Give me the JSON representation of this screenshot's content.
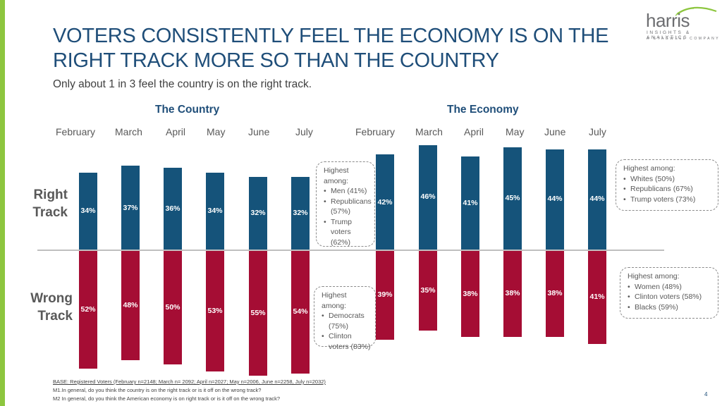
{
  "title": "VOTERS CONSISTENTLY FEEL THE ECONOMY IS ON THE RIGHT TRACK MORE SO THAN THE COUNTRY",
  "subtitle": "Only about 1 in 3 feel the country is on the right track.",
  "logo": {
    "word": "harris",
    "line1": "INSIGHTS & ANALYTICS",
    "line2": "A STAGWELL COMPANY"
  },
  "colors": {
    "right_track": "#15537a",
    "wrong_track": "#a50d34",
    "title": "#1f4e79",
    "accent": "#8dc63f"
  },
  "row_labels": {
    "right": [
      "Right",
      "Track"
    ],
    "wrong": [
      "Wrong",
      "Track"
    ]
  },
  "chart_data": [
    {
      "type": "bar",
      "title": "The Country",
      "categories": [
        "February",
        "March",
        "April",
        "May",
        "June",
        "July"
      ],
      "series": [
        {
          "name": "Right Track",
          "values": [
            34,
            37,
            36,
            34,
            32,
            32
          ],
          "labels": [
            "34%",
            "37%",
            "36%",
            "34%",
            "32%",
            "32%"
          ]
        },
        {
          "name": "Wrong Track",
          "values": [
            52,
            48,
            50,
            53,
            55,
            54
          ],
          "labels": [
            "52%",
            "48%",
            "50%",
            "53%",
            "55%",
            "54%"
          ]
        }
      ]
    },
    {
      "type": "bar",
      "title": "The Economy",
      "categories": [
        "February",
        "March",
        "April",
        "May",
        "June",
        "July"
      ],
      "series": [
        {
          "name": "Right Track",
          "values": [
            42,
            46,
            41,
            45,
            44,
            44
          ],
          "labels": [
            "42%",
            "46%",
            "41%",
            "45%",
            "44%",
            "44%"
          ]
        },
        {
          "name": "Wrong Track",
          "values": [
            39,
            35,
            38,
            38,
            38,
            41
          ],
          "labels": [
            "39%",
            "35%",
            "38%",
            "38%",
            "38%",
            "41%"
          ]
        }
      ]
    }
  ],
  "callouts": {
    "country_right": {
      "heading_lines": [
        "Highest",
        "among:"
      ],
      "items": [
        [
          "Men (41%)"
        ],
        [
          "Republicans",
          "(57%)"
        ],
        [
          "Trump",
          "voters",
          "(62%)"
        ]
      ]
    },
    "country_wrong": {
      "heading_lines": [
        "Highest among:"
      ],
      "items": [
        [
          "Democrats",
          "(75%)"
        ],
        [
          "Clinton",
          "voters (83%)"
        ]
      ]
    },
    "economy_right": {
      "heading_lines": [
        "Highest among:"
      ],
      "items": [
        [
          "Whites (50%)"
        ],
        [
          "Republicans (67%)"
        ],
        [
          "Trump voters (73%)"
        ]
      ]
    },
    "economy_wrong": {
      "heading_lines": [
        "Highest among:"
      ],
      "items": [
        [
          "Women (48%)"
        ],
        [
          "Clinton voters (58%)"
        ],
        [
          "Blacks (59%)"
        ]
      ]
    }
  },
  "footer": {
    "base": "BASE: Registered Voters (February n=2148; March n= 2092; April n=2027; May n=2006, June n=2258, July n=2032)",
    "m1": "M1.In general, do you think the country is on the right track or is it off on the wrong track?",
    "m2": "M2 In general, do you think the American economy is on right track or is it off on the wrong track?"
  },
  "page_number": "4"
}
